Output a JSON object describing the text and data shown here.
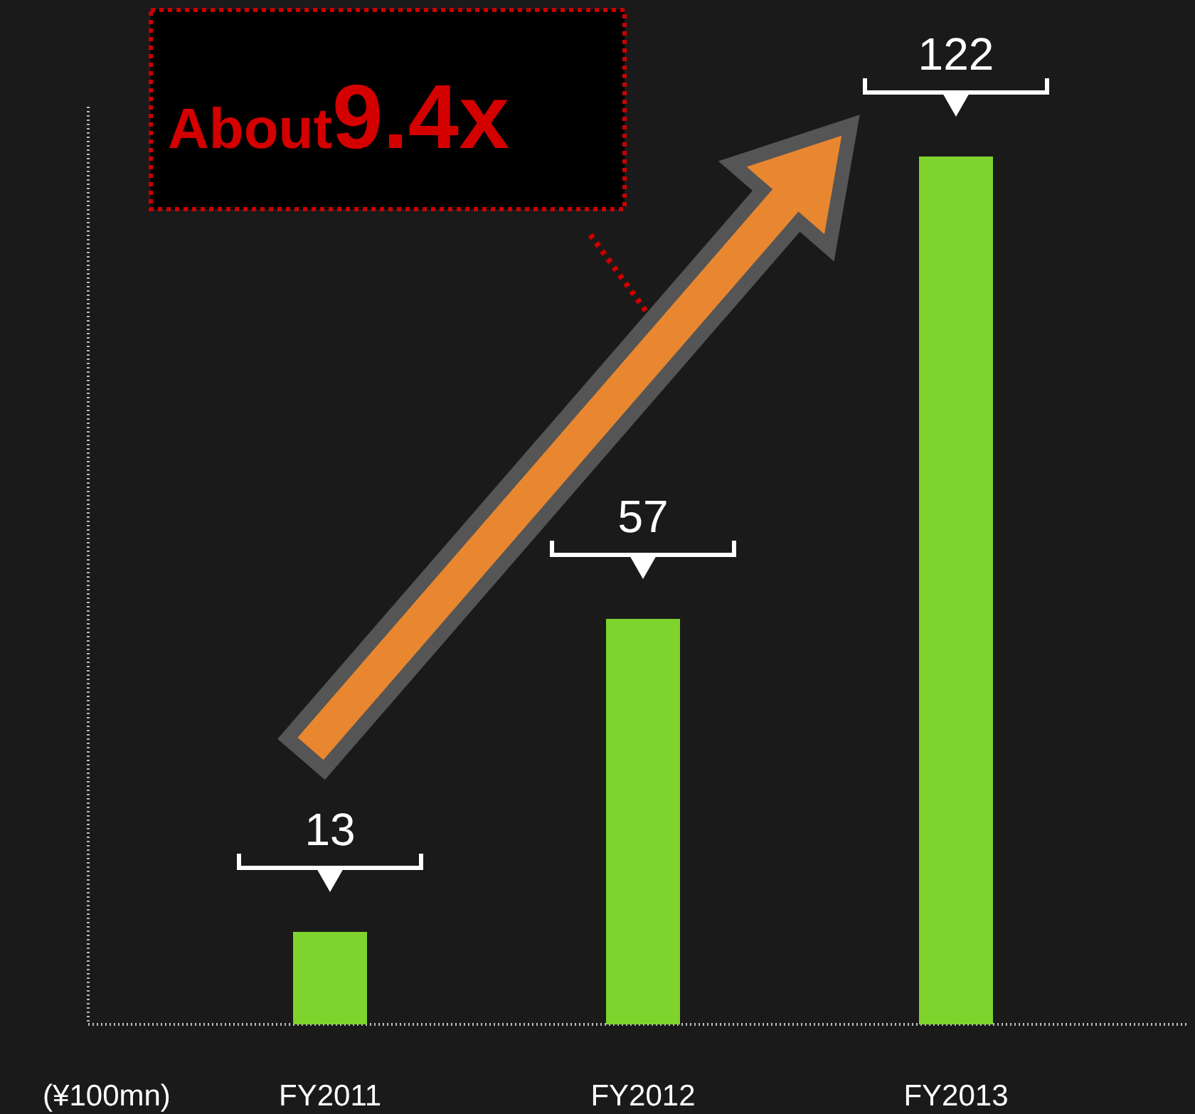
{
  "chart_data": {
    "type": "bar",
    "categories": [
      "FY2011",
      "FY2012",
      "FY2013"
    ],
    "values": [
      13,
      57,
      122
    ],
    "color": "#7ed32d",
    "ylim": [
      0,
      129
    ],
    "data_labels": true,
    "ylabel": "(¥100mn)",
    "annotations": [
      "About",
      "9.4x"
    ]
  }
}
